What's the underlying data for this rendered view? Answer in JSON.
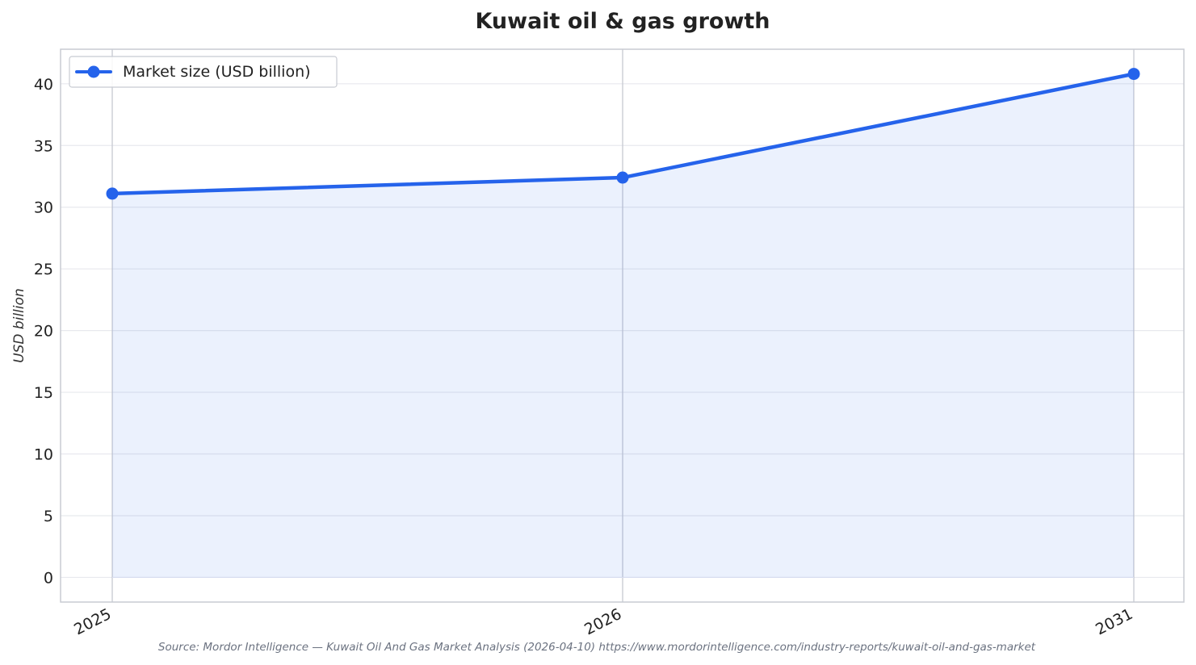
{
  "chart_data": {
    "type": "line",
    "title": "Kuwait oil & gas growth",
    "xlabel": "",
    "ylabel": "USD billion",
    "categories": [
      "2025",
      "2026",
      "2031"
    ],
    "x": [
      2025,
      2026,
      2031
    ],
    "series": [
      {
        "name": "Market size (USD billion)",
        "values": [
          31.1,
          32.4,
          40.8
        ],
        "color": "#2563eb"
      }
    ],
    "ylim": [
      -2,
      42.8
    ],
    "yticks": [
      0,
      5,
      10,
      15,
      20,
      25,
      30,
      35,
      40
    ],
    "ytick_labels": [
      "0",
      "5",
      "10",
      "15",
      "20",
      "25",
      "30",
      "35",
      "40"
    ],
    "xtick_labels": [
      "2025",
      "2026",
      "2031"
    ],
    "area_fill": true,
    "markers": true,
    "grid": true,
    "legend": "top-left",
    "source": "Source: Mordor Intelligence — Kuwait Oil And Gas Market Analysis (2026-04-10) https://www.mordorintelligence.com/industry-reports/kuwait-oil-and-gas-market"
  }
}
